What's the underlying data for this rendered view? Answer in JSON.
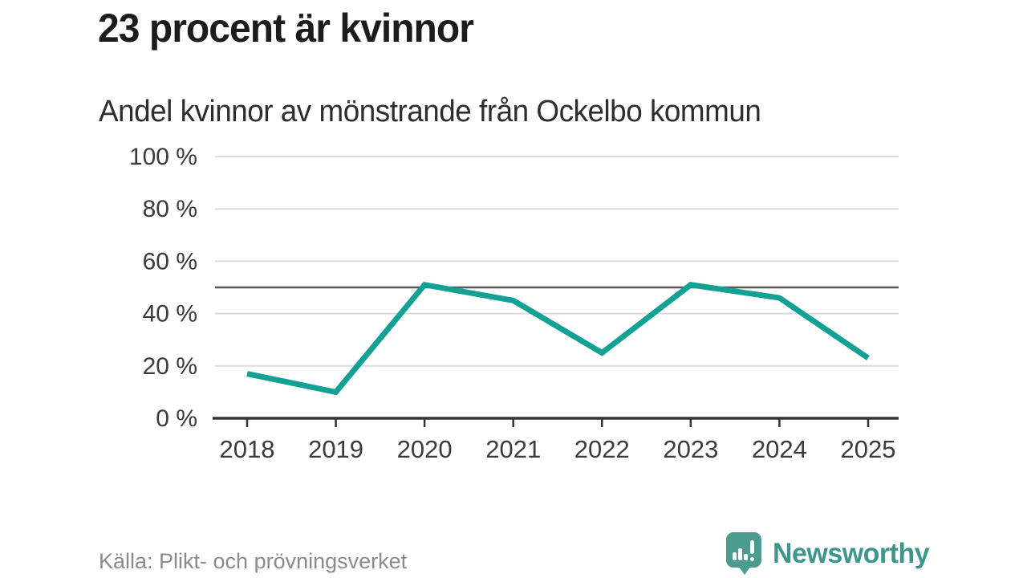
{
  "header": {
    "title": "23 procent är kvinnor",
    "subtitle": "Andel kvinnor av mönstrande från Ockelbo kommun"
  },
  "chart_data": {
    "type": "line",
    "title": "23 procent är kvinnor",
    "subtitle": "Andel kvinnor av mönstrande från Ockelbo kommun",
    "x": [
      "2018",
      "2019",
      "2020",
      "2021",
      "2022",
      "2023",
      "2024",
      "2025"
    ],
    "series": [
      {
        "name": "Andel kvinnor av mönstrande",
        "values": [
          17,
          10,
          51,
          45,
          25,
          51,
          46,
          23
        ]
      }
    ],
    "xlabel": "",
    "ylabel": "",
    "ylim": [
      0,
      100
    ],
    "y_ticks": [
      0,
      20,
      40,
      60,
      80,
      100
    ],
    "y_tick_labels": [
      "0 %",
      "20 %",
      "40 %",
      "60 %",
      "80 %",
      "100 %"
    ],
    "reference_line": 50,
    "grid": "horizontal",
    "legend": "none",
    "colors": {
      "line": "#13a195",
      "grid": "#dcdcdc",
      "reference_line": "#58585a",
      "axis": "#333333",
      "tick_label": "#3b3b3b"
    }
  },
  "footer": {
    "source": "Källa: Plikt- och prövningsverket",
    "brand": "Newsworthy",
    "brand_color": "#3d968c",
    "logo_color": "#4b9b8e",
    "logo_icon": "bar-chart-exclamation-speech-bubble"
  }
}
